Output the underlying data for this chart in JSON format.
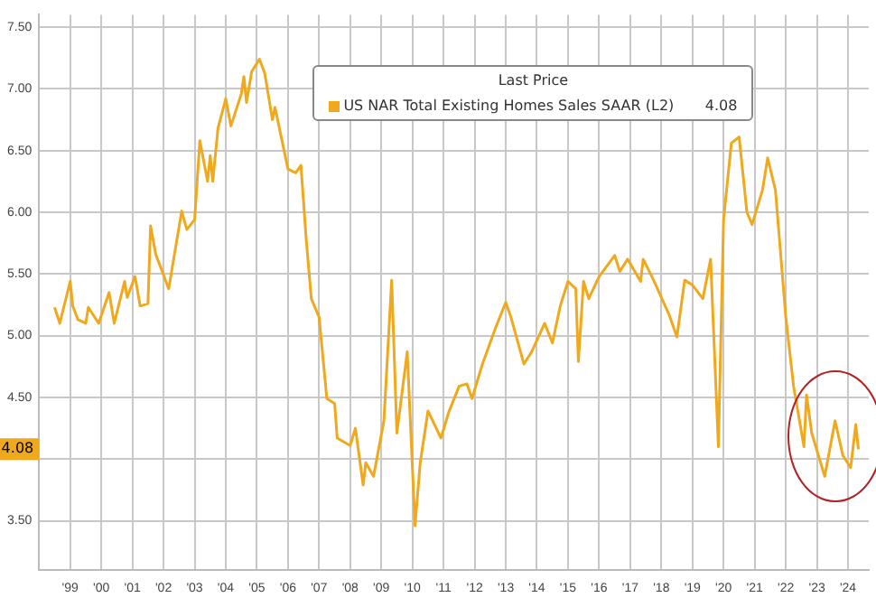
{
  "chart_data": {
    "type": "line",
    "legend_title": "Last Price",
    "legend": "top",
    "grid": true,
    "marker": "none",
    "line_style": "solid",
    "xlim": [
      "1998-07",
      "2025-03"
    ],
    "xticks": [
      {
        "value": "1999-07",
        "label": "'99"
      },
      {
        "value": "2000-07",
        "label": "'00"
      },
      {
        "value": "2001-07",
        "label": "'01"
      },
      {
        "value": "2002-07",
        "label": "'02"
      },
      {
        "value": "2003-07",
        "label": "'03"
      },
      {
        "value": "2004-07",
        "label": "'04"
      },
      {
        "value": "2005-07",
        "label": "'05"
      },
      {
        "value": "2006-07",
        "label": "'06"
      },
      {
        "value": "2007-07",
        "label": "'07"
      },
      {
        "value": "2008-07",
        "label": "'08"
      },
      {
        "value": "2009-07",
        "label": "'09"
      },
      {
        "value": "2010-07",
        "label": "'10"
      },
      {
        "value": "2011-07",
        "label": "'11"
      },
      {
        "value": "2012-07",
        "label": "'12"
      },
      {
        "value": "2013-07",
        "label": "'13"
      },
      {
        "value": "2014-07",
        "label": "'14"
      },
      {
        "value": "2015-07",
        "label": "'15"
      },
      {
        "value": "2016-07",
        "label": "'16"
      },
      {
        "value": "2017-07",
        "label": "'17"
      },
      {
        "value": "2018-07",
        "label": "'18"
      },
      {
        "value": "2019-07",
        "label": "'19"
      },
      {
        "value": "2020-07",
        "label": "'20"
      },
      {
        "value": "2021-07",
        "label": "'21"
      },
      {
        "value": "2022-07",
        "label": "'22"
      },
      {
        "value": "2023-07",
        "label": "'23"
      },
      {
        "value": "2024-07",
        "label": "'24"
      }
    ],
    "ylim": [
      3.1,
      7.6
    ],
    "yticks": [
      {
        "value": 3.5,
        "label": "3.50"
      },
      {
        "value": 4,
        "label": null
      },
      {
        "value": 4.5,
        "label": "4.50"
      },
      {
        "value": 5,
        "label": "5.00"
      },
      {
        "value": 5.5,
        "label": "5.50"
      },
      {
        "value": 6,
        "label": "6.00"
      },
      {
        "value": 6.5,
        "label": "6.50"
      },
      {
        "value": 7,
        "label": "7.00"
      },
      {
        "value": 7.5,
        "label": "7.50"
      }
    ],
    "annotations": [
      "4.08",
      "4.08"
    ],
    "series": [
      {
        "name": "US NAR Total Existing Homes Sales SAAR  (L2)",
        "color": "#f0a81c",
        "x": [
          "1999-01",
          "1999-03",
          "1999-07",
          "1999-08",
          "1999-10",
          "2000-01",
          "2000-02",
          "2000-06",
          "2000-10",
          "2000-12",
          "2001-04",
          "2001-05",
          "2001-08",
          "2001-10",
          "2002-01",
          "2002-02",
          "2002-04",
          "2002-09",
          "2003-02",
          "2003-04",
          "2003-07",
          "2003-09",
          "2003-12",
          "2004-01",
          "2004-02",
          "2004-04",
          "2004-07",
          "2004-09",
          "2005-01",
          "2005-02",
          "2005-03",
          "2005-05",
          "2005-08",
          "2005-10",
          "2006-01",
          "2006-02",
          "2006-07",
          "2006-10",
          "2006-12",
          "2007-02",
          "2007-04",
          "2007-07",
          "2007-10",
          "2008-01",
          "2008-02",
          "2008-07",
          "2008-09",
          "2008-12",
          "2009-01",
          "2009-04",
          "2009-08",
          "2009-11",
          "2010-01",
          "2010-05",
          "2010-08",
          "2010-10",
          "2011-01",
          "2011-06",
          "2011-09",
          "2012-01",
          "2012-04",
          "2012-06",
          "2012-10",
          "2013-03",
          "2013-07",
          "2013-09",
          "2014-02",
          "2014-05",
          "2014-10",
          "2015-01",
          "2015-04",
          "2015-07",
          "2015-10",
          "2015-11",
          "2016-01",
          "2016-03",
          "2016-07",
          "2017-01",
          "2017-03",
          "2017-06",
          "2017-11",
          "2017-12",
          "2018-04",
          "2018-10",
          "2019-01",
          "2019-04",
          "2019-07",
          "2019-11",
          "2020-02",
          "2020-05",
          "2020-07",
          "2020-10",
          "2021-01",
          "2021-04",
          "2021-06",
          "2021-10",
          "2021-12",
          "2022-03",
          "2022-07",
          "2022-10",
          "2023-02",
          "2023-03",
          "2023-05",
          "2023-10",
          "2024-02",
          "2024-05",
          "2024-08",
          "2024-10",
          "2024-11"
        ],
        "values": [
          5.23,
          5.1,
          5.44,
          5.24,
          5.13,
          5.1,
          5.23,
          5.1,
          5.35,
          5.1,
          5.44,
          5.31,
          5.48,
          5.24,
          5.26,
          5.89,
          5.66,
          5.38,
          6.01,
          5.86,
          5.94,
          6.58,
          6.25,
          6.46,
          6.25,
          6.68,
          6.92,
          6.7,
          6.96,
          7.1,
          6.89,
          7.14,
          7.24,
          7.13,
          6.75,
          6.85,
          6.35,
          6.32,
          6.38,
          5.79,
          5.3,
          5.15,
          4.49,
          4.45,
          4.17,
          4.11,
          4.25,
          3.79,
          3.97,
          3.86,
          4.31,
          5.45,
          4.21,
          4.87,
          3.46,
          3.97,
          4.39,
          4.17,
          4.38,
          4.59,
          4.61,
          4.49,
          4.77,
          5.06,
          5.27,
          5.15,
          4.77,
          4.87,
          5.1,
          4.94,
          5.24,
          5.44,
          5.38,
          4.79,
          5.44,
          5.3,
          5.48,
          5.65,
          5.52,
          5.62,
          5.44,
          5.62,
          5.45,
          5.17,
          4.99,
          5.45,
          5.41,
          5.3,
          5.62,
          4.1,
          5.94,
          6.56,
          6.61,
          6,
          5.9,
          6.18,
          6.44,
          6.18,
          5.15,
          4.59,
          4.1,
          4.52,
          4.21,
          3.86,
          4.31,
          4.03,
          3.93,
          4.28,
          4.08
        ]
      }
    ]
  }
}
